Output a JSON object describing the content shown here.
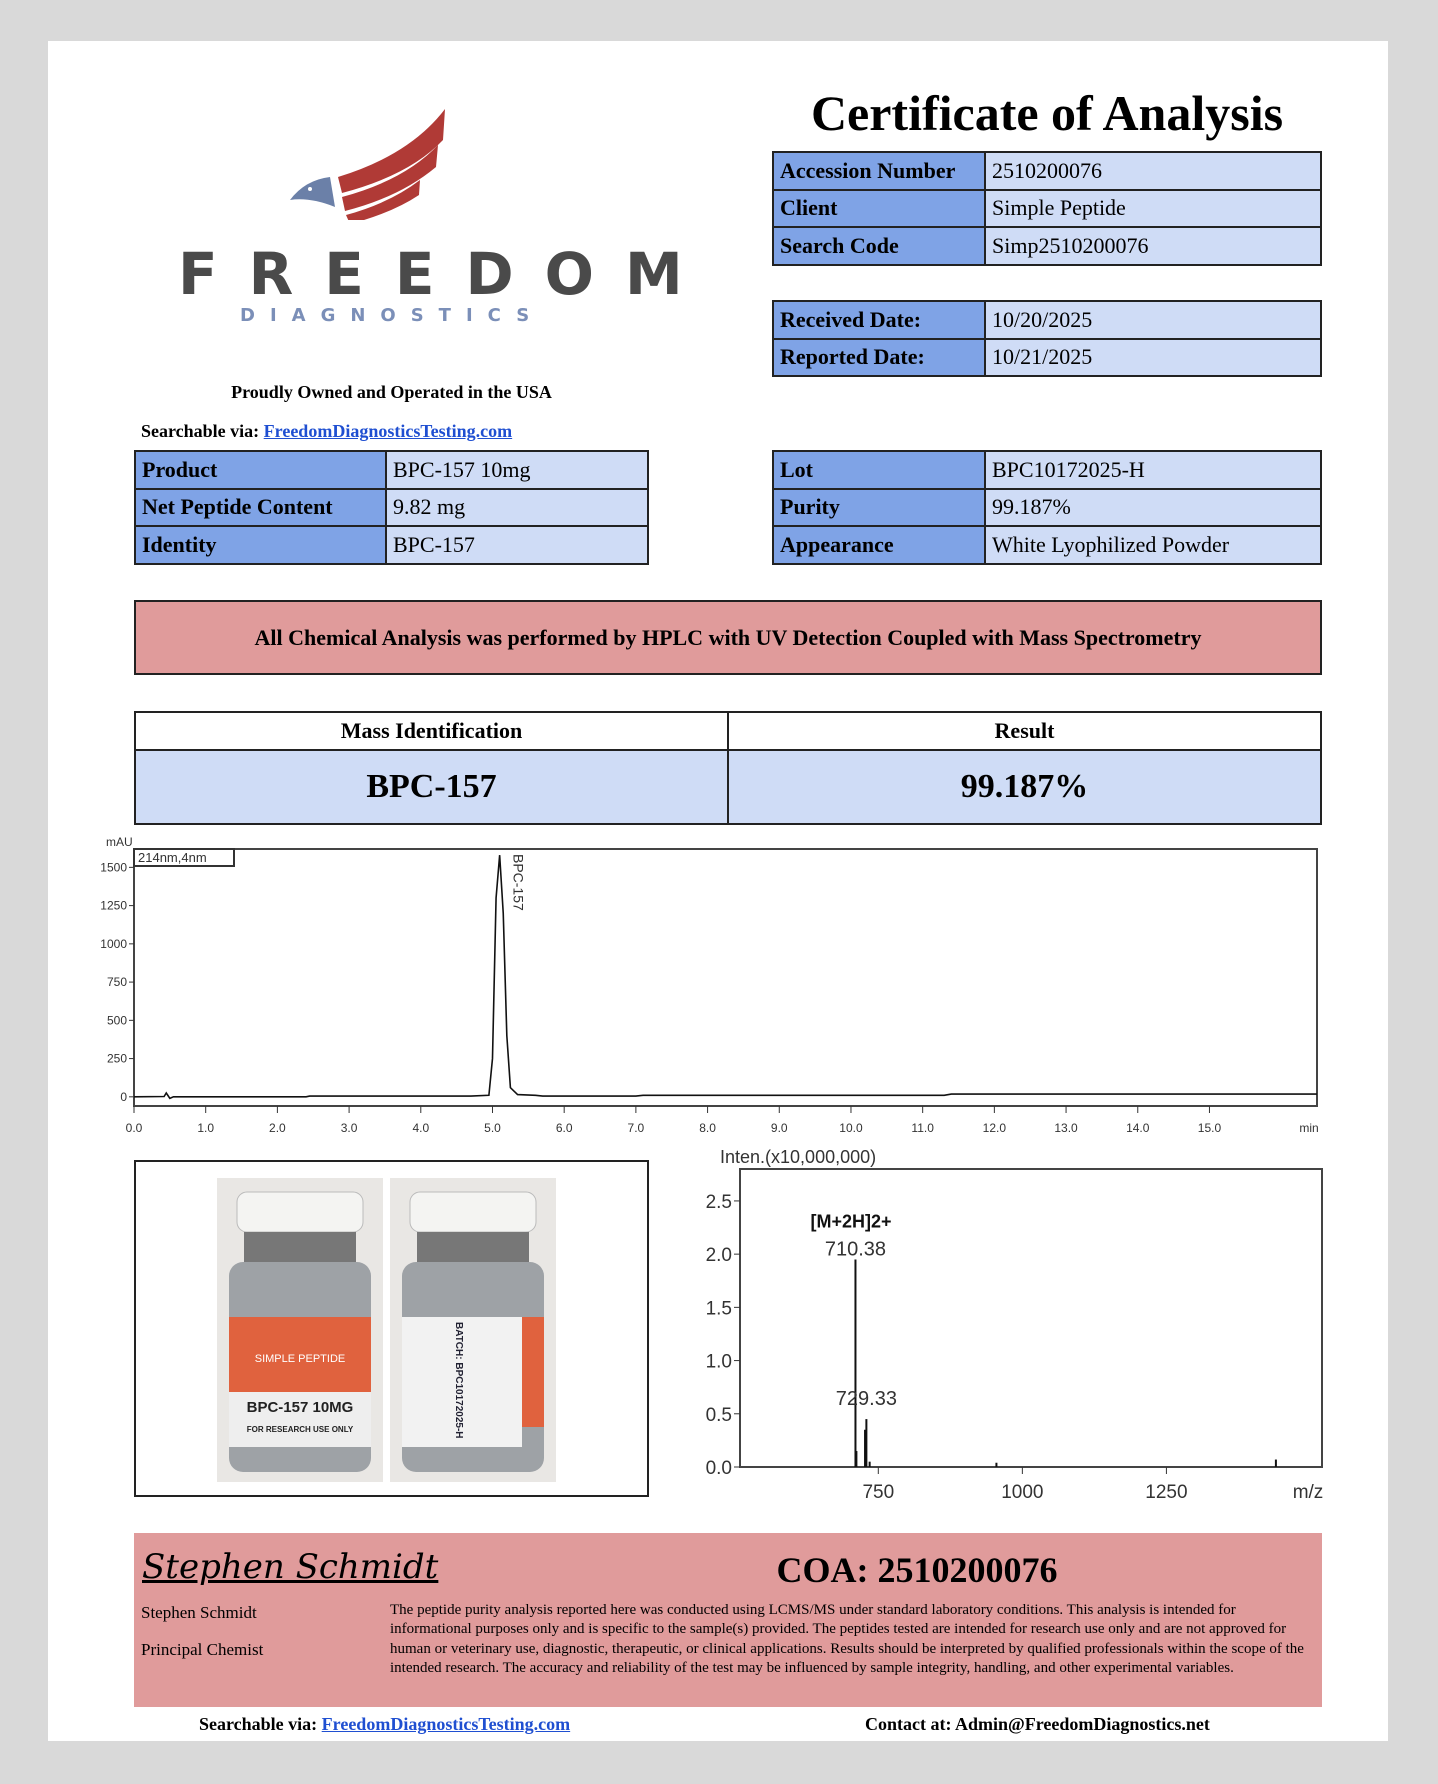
{
  "header": {
    "title": "Certificate of Analysis"
  },
  "logo": {
    "brand": "FREEDOM",
    "sub": "DIAGNOSTICS",
    "colors": {
      "stripes": "#b03a36",
      "head": "#6b80a8",
      "text": "#4a4a4a",
      "sub": "#7b8fb8"
    }
  },
  "tagline": "Proudly Owned and Operated in the USA",
  "searchable": {
    "label": "Searchable via:",
    "link": "FreedomDiagnosticsTesting.com"
  },
  "info1": [
    {
      "label": "Accession Number",
      "value": "2510200076"
    },
    {
      "label": "Client",
      "value": "Simple Peptide"
    },
    {
      "label": "Search Code",
      "value": "Simp2510200076"
    }
  ],
  "info2": [
    {
      "label": "Received Date:",
      "value": "10/20/2025"
    },
    {
      "label": "Reported Date:",
      "value": "10/21/2025"
    }
  ],
  "product": [
    {
      "label": "Product",
      "value": "BPC-157 10mg"
    },
    {
      "label": "Net Peptide Content",
      "value": "9.82 mg"
    },
    {
      "label": "Identity",
      "value": "BPC-157"
    }
  ],
  "lot": [
    {
      "label": "Lot",
      "value": "BPC10172025-H"
    },
    {
      "label": "Purity",
      "value": "99.187%"
    },
    {
      "label": "Appearance",
      "value": "White Lyophilized Powder"
    }
  ],
  "banner": "All Chemical Analysis was performed by HPLC with UV Detection Coupled with Mass Spectrometry",
  "mass": {
    "h1": "Mass Identification",
    "h2": "Result",
    "v1": "BPC-157",
    "v2": "99.187%"
  },
  "vials": {
    "brand": "SIMPLE PEPTIDE",
    "label": "BPC-157 10MG",
    "note": "FOR RESEARCH USE ONLY",
    "batch": "BATCH: BPC10172025-H"
  },
  "chart_data": [
    {
      "type": "line",
      "ylabel": "mAU",
      "legend": "214nm,4nm",
      "xunit": "min",
      "peak_label": "BPC-157",
      "xlim": [
        0,
        16.5
      ],
      "ylim": [
        -60,
        1620
      ],
      "xticks": [
        "0.0",
        "1.0",
        "2.0",
        "3.0",
        "4.0",
        "5.0",
        "6.0",
        "7.0",
        "8.0",
        "9.0",
        "10.0",
        "11.0",
        "12.0",
        "13.0",
        "14.0",
        "15.0"
      ],
      "yticks": [
        "0",
        "250",
        "500",
        "750",
        "1000",
        "1250",
        "1500"
      ],
      "x": [
        0,
        0.42,
        0.45,
        0.5,
        0.55,
        0.7,
        2.4,
        2.45,
        4.7,
        4.95,
        5.0,
        5.05,
        5.1,
        5.15,
        5.2,
        5.25,
        5.35,
        5.6,
        5.7,
        7.0,
        7.1,
        11.3,
        11.4,
        16.5
      ],
      "y": [
        0,
        2,
        25,
        -10,
        0,
        0,
        0,
        5,
        5,
        10,
        250,
        1300,
        1580,
        1200,
        400,
        60,
        15,
        10,
        5,
        5,
        10,
        10,
        18,
        18
      ]
    },
    {
      "type": "bar",
      "ylabel": "Inten.(x10,000,000)",
      "xunit": "m/z",
      "xlim": [
        510,
        1520
      ],
      "ylim": [
        0,
        2.8
      ],
      "xticks": [
        "750",
        "1000",
        "1250"
      ],
      "yticks": [
        "0.0",
        "0.5",
        "1.0",
        "1.5",
        "2.0",
        "2.5"
      ],
      "annotation": "[M+2H]2+",
      "peaks": [
        {
          "mz": 710.38,
          "i": 1.95,
          "label": "710.38"
        },
        {
          "mz": 712,
          "i": 0.15
        },
        {
          "mz": 727,
          "i": 0.35
        },
        {
          "mz": 729.33,
          "i": 0.45,
          "label": "729.33"
        },
        {
          "mz": 735,
          "i": 0.05
        },
        {
          "mz": 955,
          "i": 0.04
        },
        {
          "mz": 1440,
          "i": 0.07
        }
      ]
    }
  ],
  "footer": {
    "signature": "Stephen Schmidt",
    "coa": "COA: 2510200076",
    "name": "Stephen Schmidt",
    "role": "Principal Chemist",
    "disclaimer": "The peptide purity analysis reported here was conducted using LCMS/MS under standard laboratory conditions. This analysis is intended for informational purposes only and is specific to the sample(s) provided. The peptides tested are intended for research use only and are not approved for human or veterinary use, diagnostic, therapeutic, or clinical applications. Results should be interpreted by qualified professionals within the scope of the intended research. The accuracy and reliability of the test may be influenced by sample integrity, handling, and other experimental variables."
  },
  "bottom": {
    "search_label": "Searchable via:",
    "search_link": "FreedomDiagnosticsTesting.com",
    "contact": "Contact at: Admin@FreedomDiagnostics.net"
  }
}
